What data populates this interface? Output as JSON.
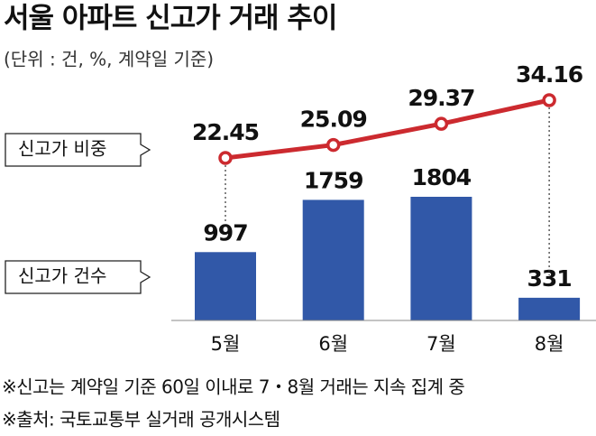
{
  "chart_data": {
    "type": "bar-line",
    "title": "서울 아파트 신고가 거래 추이",
    "subtitle": "(단위 : 건, %, 계약일 기준)",
    "categories": [
      "5월",
      "6월",
      "7월",
      "8월"
    ],
    "series": [
      {
        "name": "신고가 비중",
        "type": "line",
        "color": "#cc2a2f",
        "values": [
          22.45,
          25.09,
          29.37,
          34.16
        ]
      },
      {
        "name": "신고가 건수",
        "type": "bar",
        "color": "#3158a8",
        "values": [
          997,
          1759,
          1804,
          331
        ]
      }
    ],
    "notes": [
      "※신고는 계약일 기준 60일 이내로 7・8월 거래는 지속 집계 중",
      "※출처: 국토교통부 실거래 공개시스템"
    ]
  }
}
